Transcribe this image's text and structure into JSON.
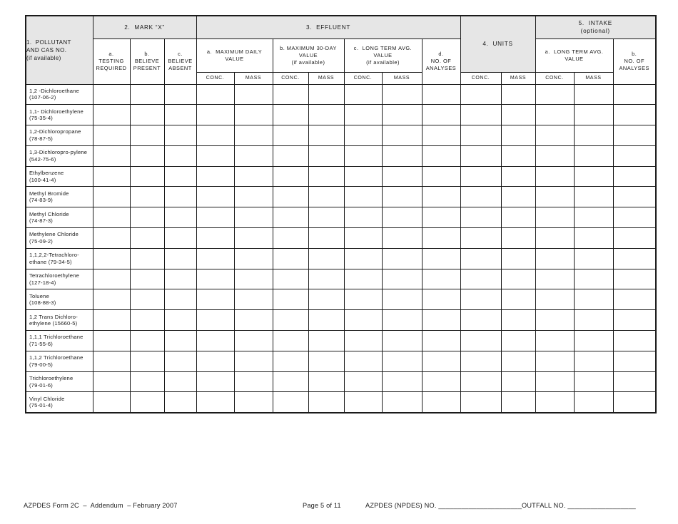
{
  "colors": {
    "header_fill": "#e6e6e6",
    "border": "#1a1a1a",
    "page_background": "#ffffff"
  },
  "table": {
    "header": {
      "pollutant": "1.  POLLUTANT\nAND CAS NO.\n(if available)",
      "mark_x": "2.  MARK “X”",
      "mark_x_a": "a.\nTESTING\nREQUIRED",
      "mark_x_b": "b.\nBELIEVE\nPRESENT",
      "mark_x_c": "c.\nBELIEVE\nABSENT",
      "effluent": "3.  EFFLUENT",
      "eff_a": "a.  MAXIMUM DAILY\nVALUE",
      "eff_b": "b. MAXIMUM 30-DAY\nVALUE\n(if available)",
      "eff_c": "c.  LONG TERM AVG.\nVALUE\n(if available)",
      "eff_d": "d.\nNO. OF\nANALYSES",
      "units": "4.  UNITS",
      "intake": "5.  INTAKE\n(optional)",
      "intake_a": "a.  LONG TERM AVG.\nVALUE",
      "intake_b": "b.\nNO. OF\nANALYSES",
      "conc": "CONC.",
      "mass": "MASS"
    },
    "rows": [
      {
        "line1": "1,2 -Dichloroethane",
        "line2": "(107-06-2)"
      },
      {
        "line1": "1,1- Dichloroethylene",
        "line2": "(75-35-4)"
      },
      {
        "line1": "1,2-Dichloropropane",
        "line2": "(78-87-5)"
      },
      {
        "line1": "1,3-Dichloropro-pylene",
        "line2": "(542-75-6)"
      },
      {
        "line1": "Ethylbenzene",
        "line2": "(100-41-4)"
      },
      {
        "line1": "Methyl Bromide",
        "line2": "(74-83-9)"
      },
      {
        "line1": "Methyl Chloride",
        "line2": "(74-87-3)"
      },
      {
        "line1": "Methylene Chloride",
        "line2": "(75-09-2)"
      },
      {
        "line1": "1,1,2,2-Tetrachloro-",
        "line2": "ethane (79-34-5)"
      },
      {
        "line1": "Tetrachloroethylene",
        "line2": "(127-18-4)"
      },
      {
        "line1": "Toluene",
        "line2": "(108-88-3)"
      },
      {
        "line1": "1,2 Trans Dichloro-",
        "line2": "ethylene (15660-5)"
      },
      {
        "line1": "1,1,1 Trichloroethane",
        "line2": "(71-55-6)"
      },
      {
        "line1": "1,1,2 Trichloroethane",
        "line2": "(79-00-5)"
      },
      {
        "line1": "Trichloroethylene",
        "line2": "(79-01-6)"
      },
      {
        "line1": "Vinyl Chloride",
        "line2": "(75-01-4)"
      }
    ],
    "blank_cells_per_row": 15
  },
  "footer": {
    "form_id": "AZPDES Form 2C  –  Addendum  – February 2007",
    "page": "Page 5 of 11",
    "npdes_label": "AZPDES (NPDES) NO.",
    "npdes_blank": "______________________",
    "outfall_label": "OUTFALL NO.",
    "outfall_blank": "__________________"
  }
}
